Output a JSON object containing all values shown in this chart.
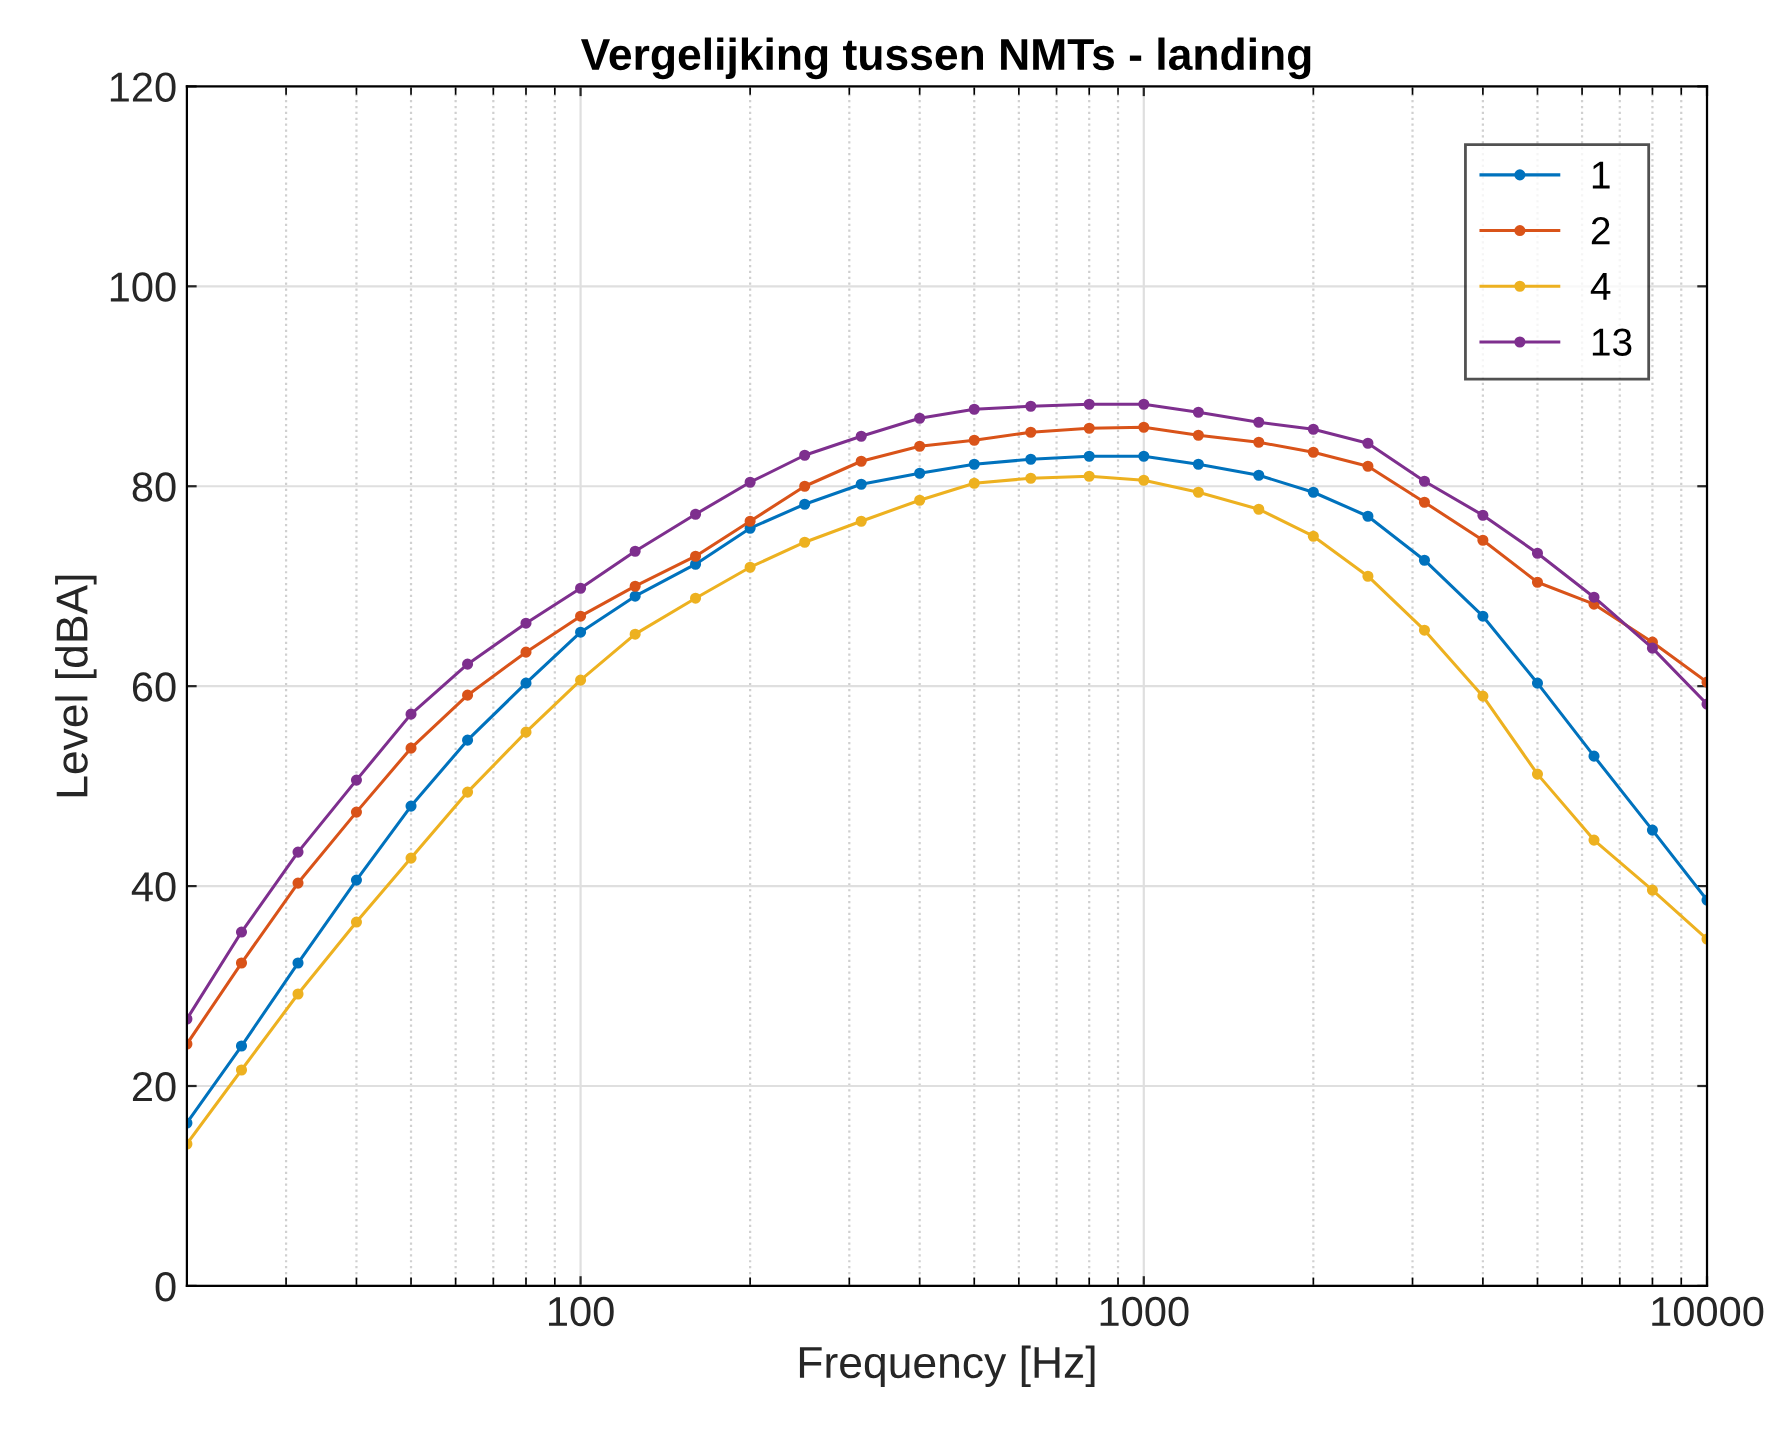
{
  "chart_data": {
    "type": "line",
    "title": "Vergelijking tussen NMTs - landing",
    "xlabel": "Frequency [Hz]",
    "ylabel": "Level [dBA]",
    "x": [
      20,
      25,
      31.5,
      40,
      50,
      63,
      80,
      100,
      125,
      160,
      200,
      250,
      315,
      400,
      500,
      630,
      800,
      1000,
      1250,
      1600,
      2000,
      2500,
      3150,
      4000,
      5000,
      6300,
      8000,
      10000
    ],
    "series": [
      {
        "name": "1",
        "color": "#0072bd",
        "values": [
          16.3,
          24,
          32.3,
          40.6,
          48,
          54.6,
          60.3,
          65.4,
          69,
          72.2,
          75.8,
          78.2,
          80.2,
          81.3,
          82.2,
          82.7,
          83,
          83,
          82.2,
          81.1,
          79.4,
          77,
          72.6,
          67,
          60.3,
          53,
          45.6,
          38.6
        ]
      },
      {
        "name": "2",
        "color": "#d95319",
        "values": [
          24.2,
          32.3,
          40.3,
          47.4,
          53.8,
          59.1,
          63.4,
          67,
          70,
          73,
          76.5,
          80,
          82.5,
          84,
          84.6,
          85.4,
          85.8,
          85.9,
          85.1,
          84.4,
          83.4,
          82,
          78.4,
          74.6,
          70.4,
          68.2,
          64.4,
          60.4
        ]
      },
      {
        "name": "4",
        "color": "#edb120",
        "values": [
          14.2,
          21.6,
          29.2,
          36.4,
          42.8,
          49.4,
          55.4,
          60.6,
          65.2,
          68.8,
          71.9,
          74.4,
          76.5,
          78.6,
          80.3,
          80.8,
          81,
          80.6,
          79.4,
          77.7,
          75,
          71,
          65.6,
          59,
          51.2,
          44.6,
          39.6,
          34.7
        ]
      },
      {
        "name": "13",
        "color": "#7e2f8e",
        "values": [
          26.7,
          35.4,
          43.4,
          50.6,
          57.2,
          62.2,
          66.3,
          69.8,
          73.5,
          77.2,
          80.4,
          83.1,
          85,
          86.8,
          87.7,
          88,
          88.2,
          88.2,
          87.4,
          86.4,
          85.7,
          84.3,
          80.5,
          77.1,
          73.3,
          68.9,
          63.8,
          58.2
        ]
      }
    ],
    "log": "x",
    "xlim": [
      20,
      10000
    ],
    "xticks": [
      100,
      1000,
      10000
    ],
    "ylim": [
      0,
      120
    ],
    "yticks": [
      0,
      20,
      40,
      60,
      80,
      100,
      120
    ],
    "grid": true,
    "legend": "top right",
    "marker": "circle",
    "line_style": "solid"
  }
}
